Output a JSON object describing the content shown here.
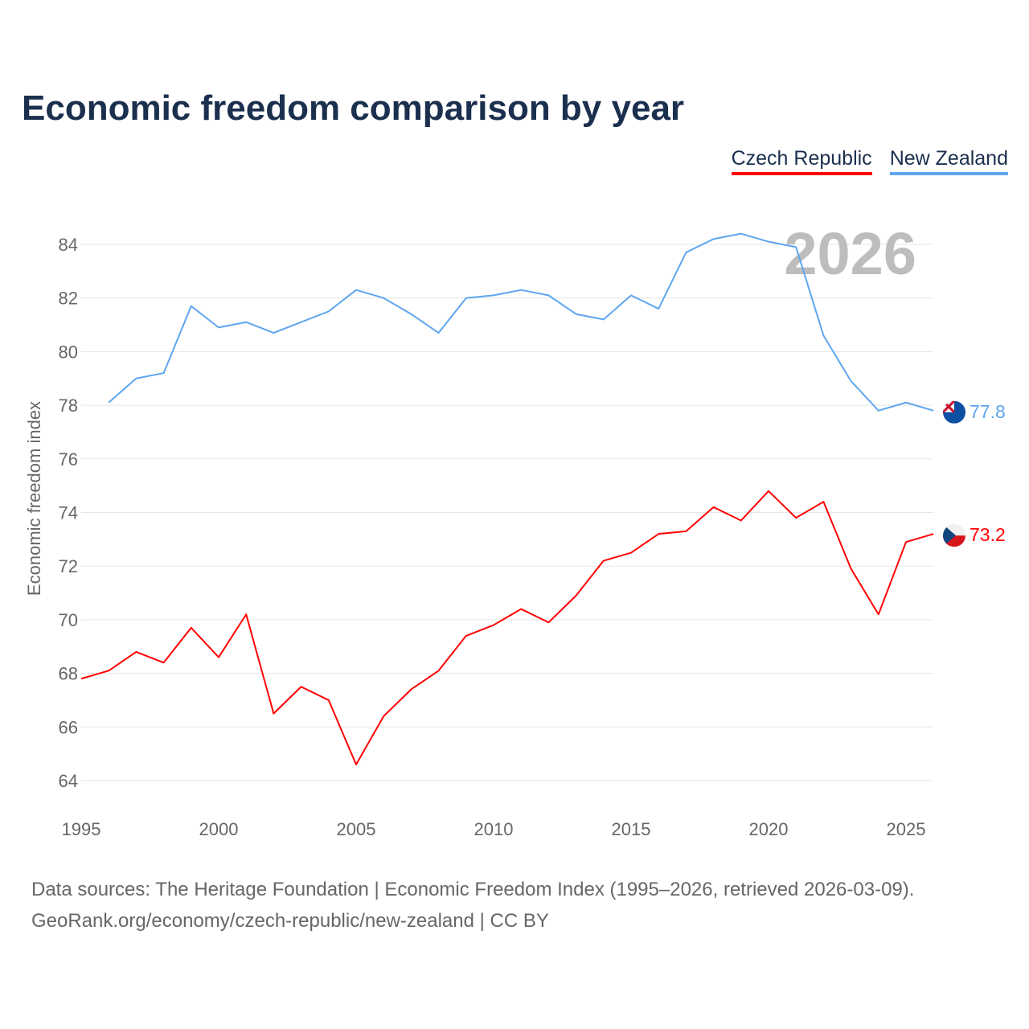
{
  "chart_data": {
    "type": "line",
    "title": "Economic freedom comparison by year",
    "ylabel": "Economic freedom index",
    "xlabel": "",
    "xlim": [
      1995,
      2026
    ],
    "ylim": [
      63,
      86
    ],
    "xticks": [
      1995,
      2000,
      2005,
      2010,
      2015,
      2020,
      2025
    ],
    "yticks": [
      64,
      66,
      68,
      70,
      72,
      74,
      76,
      78,
      80,
      82,
      84
    ],
    "grid": true,
    "legend_position": "top-right",
    "year_watermark": "2026",
    "series": [
      {
        "name": "Czech Republic",
        "color": "#ff0000",
        "end_label": "73.2",
        "flag_icon": "czech-flag-icon",
        "x": [
          1995,
          1996,
          1997,
          1998,
          1999,
          2000,
          2001,
          2002,
          2003,
          2004,
          2005,
          2006,
          2007,
          2008,
          2009,
          2010,
          2011,
          2012,
          2013,
          2014,
          2015,
          2016,
          2017,
          2018,
          2019,
          2020,
          2021,
          2022,
          2023,
          2024,
          2025,
          2026
        ],
        "values": [
          67.8,
          68.1,
          68.8,
          68.4,
          69.7,
          68.6,
          70.2,
          66.5,
          67.5,
          67.0,
          64.6,
          66.4,
          67.4,
          68.1,
          69.4,
          69.8,
          70.4,
          69.9,
          70.9,
          72.2,
          72.5,
          73.2,
          73.3,
          74.2,
          73.7,
          74.8,
          73.8,
          74.4,
          71.9,
          70.2,
          72.9,
          73.2
        ]
      },
      {
        "name": "New Zealand",
        "color": "#5ea6ef",
        "end_label": "77.8",
        "flag_icon": "new-zealand-flag-icon",
        "x": [
          1996,
          1997,
          1998,
          1999,
          2000,
          2001,
          2002,
          2003,
          2004,
          2005,
          2006,
          2007,
          2008,
          2009,
          2010,
          2011,
          2012,
          2013,
          2014,
          2015,
          2016,
          2017,
          2018,
          2019,
          2020,
          2021,
          2022,
          2023,
          2024,
          2025,
          2026
        ],
        "values": [
          78.1,
          79.0,
          79.2,
          81.7,
          80.9,
          81.1,
          80.7,
          81.1,
          81.5,
          82.3,
          82.0,
          81.4,
          80.7,
          82.0,
          82.1,
          82.3,
          82.1,
          81.4,
          81.2,
          82.1,
          81.6,
          83.7,
          84.2,
          84.4,
          84.1,
          83.9,
          80.6,
          78.9,
          77.8,
          78.1,
          77.8
        ]
      }
    ]
  },
  "footer": {
    "line1": "Data sources: The Heritage Foundation | Economic Freedom Index (1995–2026, retrieved 2026-03-09).",
    "line2": "GeoRank.org/economy/czech-republic/new-zealand | CC BY"
  }
}
